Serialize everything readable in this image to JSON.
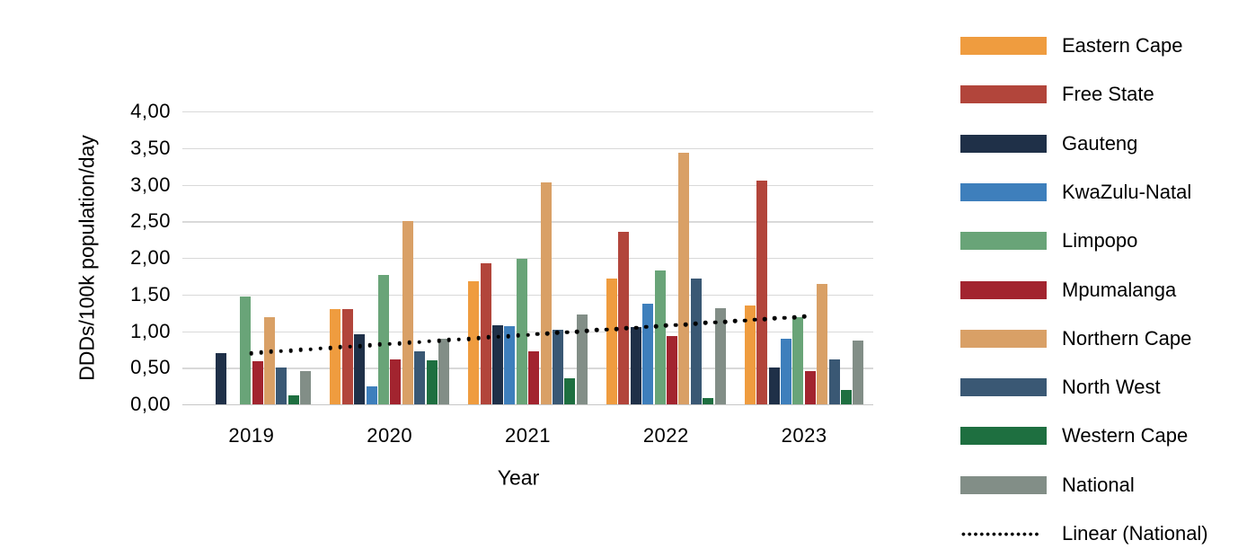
{
  "figure": {
    "background": "#ffffff"
  },
  "chart_data": {
    "type": "bar",
    "title": "",
    "xlabel": "Year",
    "ylabel": "DDDs/100k population/day",
    "categories": [
      "2019",
      "2020",
      "2021",
      "2022",
      "2023"
    ],
    "series": [
      {
        "name": "Eastern Cape",
        "color": "#EF9C3F",
        "values": [
          0,
          1.3,
          1.68,
          1.72,
          1.35
        ]
      },
      {
        "name": "Free State",
        "color": "#B2453B",
        "values": [
          0,
          1.3,
          1.93,
          2.35,
          3.05
        ]
      },
      {
        "name": "Gauteng",
        "color": "#1F3048",
        "values": [
          0.7,
          0.96,
          1.08,
          1.05,
          0.5
        ]
      },
      {
        "name": "KwaZulu-Natal",
        "color": "#3E7FBC",
        "values": [
          0,
          0.25,
          1.07,
          1.37,
          0.89
        ]
      },
      {
        "name": "Limpopo",
        "color": "#69A478",
        "values": [
          1.47,
          1.77,
          1.99,
          1.83,
          1.19
        ]
      },
      {
        "name": "Mpumalanga",
        "color": "#A2242F",
        "values": [
          0.59,
          0.61,
          0.72,
          0.93,
          0.45
        ]
      },
      {
        "name": "Northern Cape",
        "color": "#D9A066",
        "values": [
          1.19,
          2.5,
          3.03,
          3.43,
          1.64
        ]
      },
      {
        "name": "North West",
        "color": "#3A5874",
        "values": [
          0.5,
          0.72,
          1.02,
          1.72,
          0.61
        ]
      },
      {
        "name": "Western Cape",
        "color": "#1E6F40",
        "values": [
          0.12,
          0.6,
          0.36,
          0.08,
          0.2
        ]
      },
      {
        "name": "National",
        "color": "#828E87",
        "values": [
          0.45,
          0.9,
          1.23,
          1.31,
          0.87
        ]
      }
    ],
    "trendline": {
      "name": "Linear (National)",
      "color": "#000000",
      "style": "dotted",
      "start_value": 0.7,
      "end_value": 1.2
    },
    "ylim": [
      0,
      4
    ],
    "ytick_step": 0.5,
    "ytick_labels": [
      "0,00",
      "0,50",
      "1,00",
      "1,50",
      "2,00",
      "2,50",
      "3,00",
      "3,50",
      "4,00"
    ],
    "grid": true,
    "legend_position": "right"
  }
}
